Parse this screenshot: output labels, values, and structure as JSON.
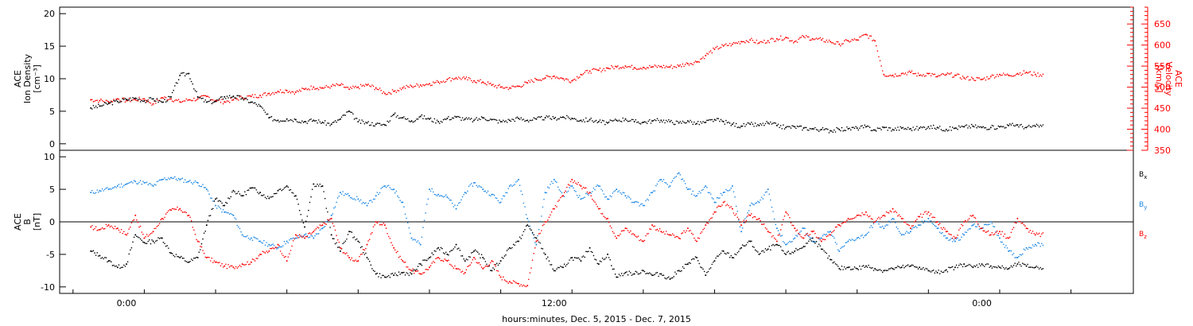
{
  "colors": {
    "black": "#000000",
    "red": "#ff0000",
    "blue": "#1e88e5"
  },
  "chart_data": [
    {
      "type": "scatter",
      "panel": "top",
      "ylabel_left": [
        "ACE",
        "Ion Density",
        "[cm⁻³]"
      ],
      "ylabel_right": [
        "ACE",
        "Velocity",
        "[km/s]"
      ],
      "ylim_left": [
        -1,
        21
      ],
      "yticks_left": [
        0,
        5,
        10,
        15,
        20
      ],
      "ylim_right": [
        350,
        690
      ],
      "yticks_right": [
        350,
        400,
        450,
        500,
        550,
        600,
        650
      ],
      "series": [
        {
          "axis": "left",
          "color": "#000000",
          "x": [
            -4,
            -3,
            -2,
            -1,
            0,
            1,
            2,
            3,
            4,
            5,
            6,
            7,
            8,
            9,
            10,
            11,
            12,
            13,
            14,
            15,
            16,
            17,
            18,
            19,
            20,
            21,
            22,
            23,
            24,
            25,
            26,
            27,
            28,
            29,
            30,
            31,
            32,
            33,
            34,
            35,
            36,
            37,
            38,
            39,
            40,
            41,
            42,
            43,
            44,
            45,
            46,
            47,
            48,
            49,
            50,
            51,
            52,
            53,
            54,
            55,
            56,
            57,
            58,
            59,
            60,
            61,
            62,
            63,
            64,
            65,
            66,
            67,
            68,
            69,
            70,
            71,
            72,
            73,
            74,
            75,
            76,
            77,
            78,
            79,
            80,
            81,
            82,
            83,
            84,
            85,
            86,
            87,
            88,
            89,
            90,
            91,
            92,
            93,
            94,
            95,
            96,
            97,
            98,
            99,
            100,
            101,
            102
          ],
          "y": [
            5.5,
            5.8,
            6.2,
            6.5,
            6.8,
            7.0,
            6.6,
            6.9,
            6.4,
            7.2,
            10.5,
            10.8,
            7.2,
            6.4,
            6.5,
            7.2,
            7.3,
            7.0,
            6.4,
            5.8,
            4.0,
            3.6,
            3.8,
            3.7,
            3.4,
            3.6,
            3.3,
            3.0,
            3.8,
            5.0,
            3.4,
            3.2,
            3.0,
            2.9,
            4.5,
            4.0,
            3.5,
            4.2,
            3.8,
            3.4,
            3.9,
            4.1,
            3.8,
            3.6,
            4.0,
            3.7,
            3.4,
            3.6,
            3.9,
            3.6,
            3.8,
            4.0,
            3.9,
            4.1,
            3.9,
            3.6,
            3.7,
            3.4,
            3.2,
            3.6,
            3.8,
            3.4,
            3.3,
            3.5,
            3.6,
            3.4,
            3.2,
            3.5,
            3.1,
            3.3,
            3.7,
            3.4,
            3.0,
            2.7,
            3.0,
            2.8,
            3.2,
            2.8,
            2.5,
            2.6,
            2.4,
            2.3,
            2.2,
            2.0,
            2.2,
            2.3,
            2.4,
            2.6,
            2.1,
            2.5,
            2.2,
            2.4,
            2.3,
            2.4,
            2.6,
            2.5,
            2.2,
            2.4,
            2.6,
            2.7,
            2.5,
            2.5,
            2.6,
            2.8,
            2.9,
            2.5,
            2.7
          ]
        },
        {
          "axis": "right",
          "color": "#ff0000",
          "x": [
            -4,
            -3,
            -2,
            -1,
            0,
            1,
            2,
            3,
            4,
            5,
            6,
            7,
            8,
            9,
            10,
            11,
            12,
            13,
            14,
            15,
            16,
            17,
            18,
            19,
            20,
            21,
            22,
            23,
            24,
            25,
            26,
            27,
            28,
            29,
            30,
            31,
            32,
            33,
            34,
            35,
            36,
            37,
            38,
            39,
            40,
            41,
            42,
            43,
            44,
            45,
            46,
            47,
            48,
            49,
            50,
            51,
            52,
            53,
            54,
            55,
            56,
            57,
            58,
            59,
            60,
            61,
            62,
            63,
            64,
            65,
            66,
            67,
            68,
            69,
            70,
            71,
            72,
            73,
            74,
            75,
            76,
            77,
            78,
            79,
            80,
            81,
            82,
            83,
            84,
            85,
            86,
            87,
            88,
            89,
            90,
            91,
            92,
            93,
            94,
            95,
            96,
            97,
            98,
            99,
            100,
            101,
            102
          ],
          "y": [
            470,
            468,
            465,
            472,
            468,
            470,
            472,
            460,
            475,
            472,
            465,
            470,
            472,
            478,
            468,
            465,
            470,
            475,
            478,
            480,
            485,
            490,
            492,
            488,
            495,
            500,
            498,
            502,
            505,
            495,
            500,
            505,
            498,
            485,
            490,
            498,
            502,
            505,
            508,
            512,
            518,
            522,
            520,
            515,
            512,
            505,
            500,
            498,
            502,
            510,
            518,
            522,
            526,
            520,
            515,
            530,
            538,
            540,
            545,
            548,
            550,
            546,
            547,
            548,
            549,
            548,
            550,
            556,
            560,
            575,
            590,
            598,
            602,
            608,
            612,
            605,
            610,
            615,
            618,
            608,
            620,
            615,
            612,
            608,
            602,
            610,
            612,
            625,
            610,
            530,
            528,
            532,
            535,
            528,
            532,
            525,
            530,
            528,
            522,
            520,
            518,
            525,
            530,
            528,
            532,
            535,
            530
          ]
        }
      ]
    },
    {
      "type": "scatter",
      "panel": "bottom",
      "ylabel": [
        "ACE",
        "B",
        "[nT]"
      ],
      "ylim": [
        -11,
        11
      ],
      "yticks": [
        -10,
        -5,
        0,
        5,
        10
      ],
      "xlabel": "hours:minutes, Dec.  5, 2015 - Dec.  7, 2015",
      "xticks": [
        {
          "x": 0,
          "label": "0:00"
        },
        {
          "x": 48,
          "label": "12:00"
        },
        {
          "x": 96,
          "label": "0:00"
        }
      ],
      "xlim": [
        -7.5,
        113
      ],
      "series": [
        {
          "name": "Bx",
          "color": "#000000",
          "x": [
            -4,
            -3,
            -2,
            -1,
            0,
            1,
            2,
            3,
            4,
            5,
            6,
            7,
            8,
            9,
            10,
            11,
            12,
            13,
            14,
            15,
            16,
            17,
            18,
            19,
            20,
            21,
            22,
            23,
            24,
            25,
            26,
            27,
            28,
            29,
            30,
            31,
            32,
            33,
            34,
            35,
            36,
            37,
            38,
            39,
            40,
            41,
            42,
            43,
            44,
            45,
            46,
            47,
            48,
            49,
            50,
            51,
            52,
            53,
            54,
            55,
            56,
            57,
            58,
            59,
            60,
            61,
            62,
            63,
            64,
            65,
            66,
            67,
            68,
            69,
            70,
            71,
            72,
            73,
            74,
            75,
            76,
            77,
            78,
            79,
            80,
            81,
            82,
            83,
            84,
            85,
            86,
            87,
            88,
            89,
            90,
            91,
            92,
            93,
            94,
            95,
            96,
            97,
            98,
            99,
            100,
            101,
            102
          ],
          "y": [
            -4.5,
            -5.2,
            -6.0,
            -7.0,
            -6.5,
            -2.0,
            -3.2,
            -3.0,
            -2.5,
            -4.8,
            -5.5,
            -6.2,
            -5.5,
            -0.5,
            3.5,
            2.5,
            4.8,
            4.0,
            5.2,
            4.5,
            3.6,
            4.8,
            5.5,
            4.0,
            -0.8,
            5.8,
            5.5,
            -2.0,
            -4.5,
            -1.5,
            -3.0,
            -5.5,
            -8.0,
            -8.5,
            -8.2,
            -7.8,
            -8.0,
            -6.5,
            -5.5,
            -4.0,
            -5.0,
            -3.5,
            -6.0,
            -4.5,
            -5.5,
            -7.5,
            -6.0,
            -4.0,
            -3.0,
            -0.5,
            -2.5,
            -5.0,
            -7.5,
            -7.0,
            -5.5,
            -6.0,
            -4.0,
            -6.5,
            -5.0,
            -8.5,
            -7.8,
            -8.0,
            -7.5,
            -8.2,
            -8.0,
            -8.8,
            -7.5,
            -6.5,
            -5.5,
            -8.2,
            -6.0,
            -4.5,
            -5.5,
            -4.0,
            -3.0,
            -5.0,
            -4.2,
            -3.5,
            -5.0,
            -4.5,
            -3.8,
            -2.5,
            -4.2,
            -5.8,
            -7.2,
            -7.0,
            -7.2,
            -6.8,
            -7.2,
            -7.5,
            -7.2,
            -7.0,
            -6.8,
            -7.0,
            -7.5,
            -7.8,
            -7.4,
            -7.0,
            -6.5,
            -7.0,
            -6.5,
            -6.8,
            -7.0,
            -7.2,
            -6.5,
            -6.8,
            -7.0
          ]
        },
        {
          "name": "By",
          "color": "#1e88e5",
          "x": [
            -4,
            -3,
            -2,
            -1,
            0,
            1,
            2,
            3,
            4,
            5,
            6,
            7,
            8,
            9,
            10,
            11,
            12,
            13,
            14,
            15,
            16,
            17,
            18,
            19,
            20,
            21,
            22,
            23,
            24,
            25,
            26,
            27,
            28,
            29,
            30,
            31,
            32,
            33,
            34,
            35,
            36,
            37,
            38,
            39,
            40,
            41,
            42,
            43,
            44,
            45,
            46,
            47,
            48,
            49,
            50,
            51,
            52,
            53,
            54,
            55,
            56,
            57,
            58,
            59,
            60,
            61,
            62,
            63,
            64,
            65,
            66,
            67,
            68,
            69,
            70,
            71,
            72,
            73,
            74,
            75,
            76,
            77,
            78,
            79,
            80,
            81,
            82,
            83,
            84,
            85,
            86,
            87,
            88,
            89,
            90,
            91,
            92,
            93,
            94,
            95,
            96,
            97,
            98,
            99,
            100,
            101,
            102
          ],
          "y": [
            4.5,
            4.8,
            5.0,
            5.5,
            5.8,
            6.2,
            6.0,
            5.5,
            6.5,
            6.8,
            6.5,
            6.2,
            6.0,
            5.0,
            2.5,
            1.5,
            1.0,
            -2.0,
            -2.5,
            -3.0,
            -3.5,
            -4.0,
            -3.0,
            -2.5,
            -2.0,
            -2.5,
            -1.0,
            1.0,
            4.5,
            4.0,
            3.5,
            2.5,
            4.0,
            5.5,
            5.0,
            3.0,
            -2.5,
            -3.5,
            5.0,
            4.2,
            3.8,
            2.0,
            4.5,
            6.0,
            5.0,
            4.2,
            3.0,
            5.5,
            6.5,
            0.5,
            -3.5,
            4.5,
            6.5,
            4.0,
            5.5,
            3.5,
            4.5,
            5.5,
            3.5,
            5.0,
            4.0,
            3.0,
            2.5,
            4.5,
            6.5,
            5.5,
            7.5,
            5.0,
            4.0,
            5.5,
            3.0,
            4.5,
            5.5,
            -1.5,
            2.5,
            3.0,
            5.0,
            -1.0,
            -3.5,
            -2.5,
            -1.0,
            -3.0,
            -2.5,
            -1.5,
            -4.5,
            -3.0,
            -2.5,
            -2.0,
            0.0,
            -1.0,
            0.5,
            -2.0,
            -1.5,
            -0.5,
            0.5,
            -1.0,
            -2.5,
            -3.0,
            -2.0,
            -0.5,
            -1.0,
            0.0,
            -2.5,
            -4.5,
            -5.5,
            -4.0,
            -3.5
          ]
        },
        {
          "name": "Bz",
          "color": "#ff0000",
          "x": [
            -4,
            -3,
            -2,
            -1,
            0,
            1,
            2,
            3,
            4,
            5,
            6,
            7,
            8,
            9,
            10,
            11,
            12,
            13,
            14,
            15,
            16,
            17,
            18,
            19,
            20,
            21,
            22,
            23,
            24,
            25,
            26,
            27,
            28,
            29,
            30,
            31,
            32,
            33,
            34,
            35,
            36,
            37,
            38,
            39,
            40,
            41,
            42,
            43,
            44,
            45,
            46,
            47,
            48,
            49,
            50,
            51,
            52,
            53,
            54,
            55,
            56,
            57,
            58,
            59,
            60,
            61,
            62,
            63,
            64,
            65,
            66,
            67,
            68,
            69,
            70,
            71,
            72,
            73,
            74,
            75,
            76,
            77,
            78,
            79,
            80,
            81,
            82,
            83,
            84,
            85,
            86,
            87,
            88,
            89,
            90,
            91,
            92,
            93,
            94,
            95,
            96,
            97,
            98,
            99,
            100,
            101,
            102
          ],
          "y": [
            -0.8,
            -1.2,
            -0.5,
            -1.0,
            -2.0,
            1.0,
            -2.5,
            -1.5,
            0.5,
            1.8,
            2.0,
            1.0,
            -3.0,
            -5.5,
            -6.2,
            -6.8,
            -7.0,
            -6.5,
            -6.2,
            -5.0,
            -4.5,
            -3.5,
            -6.0,
            -2.0,
            -2.5,
            -1.5,
            -0.5,
            0.5,
            -4.0,
            -5.5,
            -6.0,
            -3.5,
            0.0,
            -0.5,
            -4.0,
            -6.0,
            -7.5,
            -8.0,
            -7.0,
            -5.5,
            -6.0,
            -7.2,
            -7.8,
            -5.5,
            -7.2,
            -6.0,
            -8.5,
            -9.2,
            -9.5,
            -9.8,
            -3.0,
            0.0,
            2.0,
            4.0,
            6.5,
            5.5,
            4.5,
            2.0,
            0.5,
            -2.5,
            -1.0,
            -2.0,
            -3.0,
            -0.5,
            -1.5,
            -2.0,
            -2.5,
            -1.0,
            -3.0,
            -0.5,
            1.5,
            3.0,
            2.0,
            -0.5,
            1.0,
            0.5,
            -1.5,
            -3.0,
            1.5,
            -1.0,
            -2.5,
            -1.5,
            -3.0,
            -2.0,
            -0.5,
            0.5,
            1.0,
            1.5,
            0.0,
            1.0,
            2.0,
            0.5,
            -1.0,
            0.8,
            1.5,
            0.0,
            -1.5,
            -2.5,
            0.0,
            1.0,
            -1.0,
            -2.0,
            -1.5,
            -2.5,
            0.5,
            -1.0,
            -2.0
          ]
        }
      ]
    }
  ],
  "legend": {
    "bx": "B",
    "bx_sub": "x",
    "by": "B",
    "by_sub": "y",
    "bz": "B",
    "bz_sub": "z"
  }
}
